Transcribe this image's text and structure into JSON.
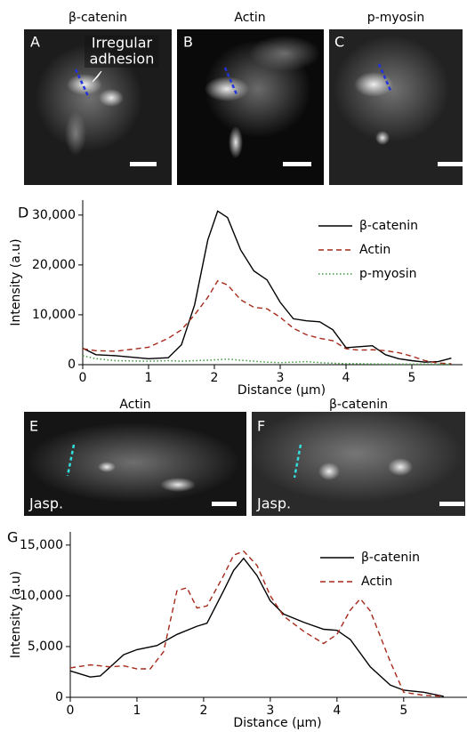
{
  "panels": [
    {
      "label": "A",
      "title": "β-catenin",
      "annotation": [
        "Irregular",
        "adhesion"
      ]
    },
    {
      "label": "B",
      "title": "Actin"
    },
    {
      "label": "C",
      "title": "p-myosin"
    },
    {
      "label": "E",
      "title": "Actin",
      "marker": "Jasp."
    },
    {
      "label": "F",
      "title": "β-catenin",
      "marker": "Jasp."
    }
  ],
  "chart_data": [
    {
      "type": "line",
      "label": "D",
      "x_label": "Distance (μm)",
      "y_label": "Intensity (a.u)",
      "x": [
        0,
        0.2,
        0.5,
        1,
        1.3,
        1.5,
        1.7,
        1.9,
        2.05,
        2.2,
        2.4,
        2.6,
        2.8,
        3.0,
        3.2,
        3.4,
        3.6,
        3.8,
        4.0,
        4.2,
        4.4,
        4.6,
        4.8,
        5.0,
        5.2,
        5.4,
        5.6
      ],
      "series": [
        {
          "name": "β-catenin",
          "color": "#000000",
          "dash": "solid",
          "values": [
            3300,
            2000,
            1800,
            1200,
            1400,
            4000,
            12000,
            25000,
            30800,
            29500,
            23000,
            18800,
            17000,
            12500,
            9200,
            8800,
            8600,
            7000,
            3400,
            3600,
            3800,
            2000,
            1200,
            800,
            500,
            600,
            1300
          ]
        },
        {
          "name": "Actin",
          "color": "#a52a1a",
          "dash": "dashed",
          "values": [
            3200,
            2800,
            2700,
            3500,
            5300,
            7000,
            10000,
            13500,
            16800,
            16000,
            13000,
            11500,
            11200,
            9500,
            7300,
            6000,
            5300,
            4800,
            3200,
            2900,
            3000,
            2800,
            2400,
            1700,
            800,
            300,
            200
          ]
        },
        {
          "name": "p-myosin",
          "color": "#3a9a3a",
          "dash": "dotted",
          "values": [
            1800,
            1200,
            800,
            700,
            800,
            700,
            800,
            900,
            1000,
            1100,
            900,
            700,
            500,
            400,
            500,
            600,
            400,
            300,
            200,
            200,
            150,
            100,
            100,
            100,
            100,
            100,
            100
          ]
        }
      ],
      "xlim": [
        0,
        5.77
      ],
      "ylim": [
        0,
        33000
      ],
      "xticks": [
        0,
        1,
        2,
        3,
        4,
        5
      ],
      "yticks": [
        0,
        {
          "value": 10000,
          "label": "10,000"
        },
        {
          "value": 20000,
          "label": "20,000"
        },
        {
          "value": 30000,
          "label": "30,000"
        }
      ],
      "legend": "upper right"
    },
    {
      "type": "line",
      "label": "G",
      "x_label": "Distance (μm)",
      "y_label": "Intensity (a.u)",
      "series": [
        {
          "name": "β-catenin",
          "color": "#000000",
          "dash": "solid",
          "x": [
            0,
            0.3,
            0.45,
            0.6,
            0.8,
            1.0,
            1.3,
            1.6,
            1.9,
            2.05,
            2.3,
            2.45,
            2.6,
            2.8,
            3.0,
            3.2,
            3.5,
            3.8,
            4.0,
            4.2,
            4.5,
            4.8,
            5.0,
            5.3,
            5.6
          ],
          "values": [
            2600,
            2000,
            2100,
            3000,
            4200,
            4700,
            5100,
            6200,
            7000,
            7300,
            10500,
            12500,
            13700,
            12000,
            9500,
            8200,
            7400,
            6700,
            6600,
            5700,
            3000,
            1200,
            700,
            500,
            100
          ]
        },
        {
          "name": "Actin",
          "color": "#a52a1a",
          "dash": "dashed",
          "x": [
            0,
            0.3,
            0.6,
            0.8,
            1.0,
            1.2,
            1.4,
            1.6,
            1.75,
            1.9,
            2.05,
            2.3,
            2.45,
            2.6,
            2.8,
            3.0,
            3.2,
            3.5,
            3.8,
            4.0,
            4.2,
            4.35,
            4.5,
            4.8,
            5.0,
            5.3,
            5.6
          ],
          "values": [
            2900,
            3200,
            3000,
            3100,
            2800,
            2800,
            4500,
            10500,
            10800,
            8800,
            9000,
            12000,
            14000,
            14400,
            13000,
            10000,
            8000,
            6500,
            5300,
            6200,
            8600,
            9700,
            8500,
            3500,
            500,
            200,
            100
          ]
        }
      ],
      "xlim": [
        0,
        5.95
      ],
      "ylim": [
        0,
        16300
      ],
      "xticks": [
        0,
        1,
        2,
        3,
        4,
        5
      ],
      "yticks": [
        0,
        {
          "value": 5000,
          "label": "5,000"
        },
        {
          "value": 10000,
          "label": "10,000"
        },
        {
          "value": 15000,
          "label": "15,000"
        }
      ],
      "legend": "upper right"
    }
  ]
}
